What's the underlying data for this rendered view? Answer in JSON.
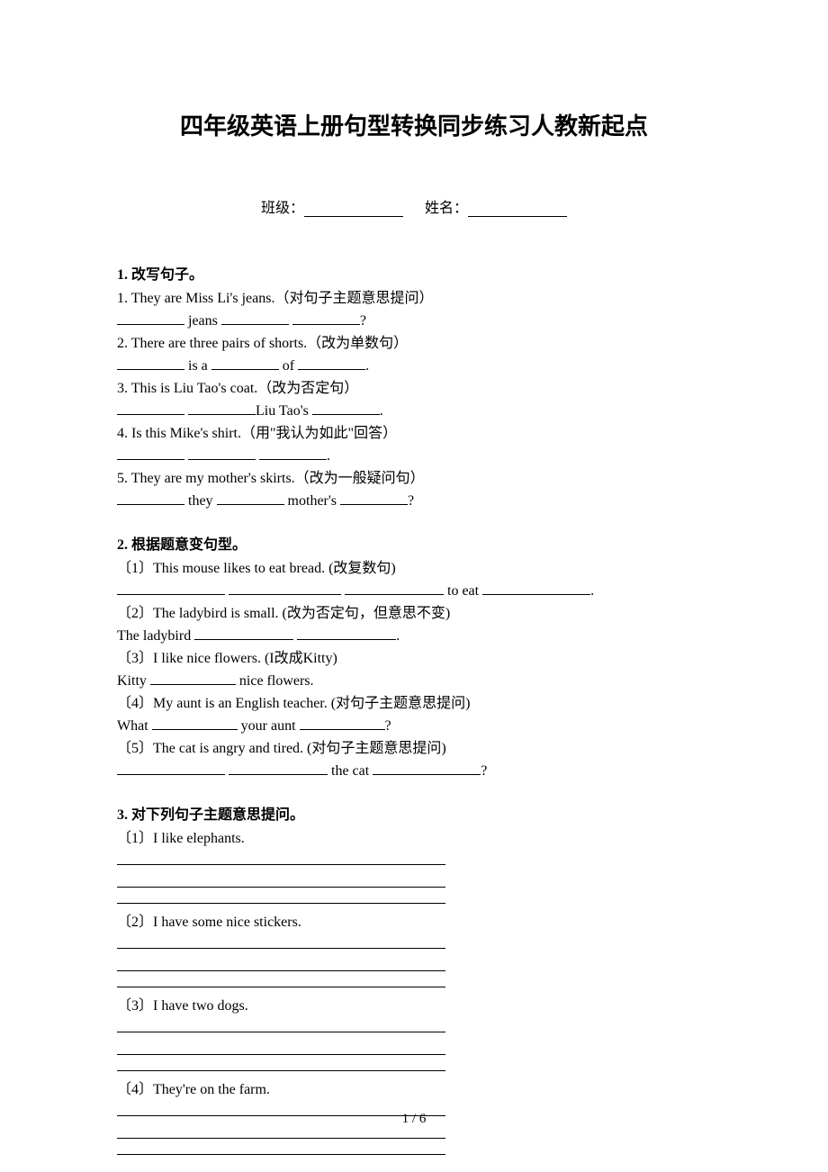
{
  "title": "四年级英语上册句型转换同步练习人教新起点",
  "info": {
    "class_label": "班级：",
    "name_label": "姓名："
  },
  "s1": {
    "title": "1.  改写句子。",
    "q1": "1. They are Miss Li's jeans.（对句子主题意思提问）",
    "q1b_mid": " jeans ",
    "q1b_end": "?",
    "q2": "2. There are three pairs of shorts.（改为单数句）",
    "q2b_mid1": " is a ",
    "q2b_mid2": " of ",
    "q2b_end": ".",
    "q3": "3. This is Liu Tao's coat.（改为否定句）",
    "q3b_mid": "Liu Tao's ",
    "q3b_end": ".",
    "q4": "4. Is this Mike's shirt.（用\"我认为如此\"回答）",
    "q4b_end": ".",
    "q5": "5. They are my mother's skirts.（改为一般疑问句）",
    "q5b_mid1": " they ",
    "q5b_mid2": " mother's ",
    "q5b_end": "?"
  },
  "s2": {
    "title": "2.  根据题意变句型。",
    "q1": "〔1〕This mouse likes to eat bread. (改复数句)",
    "q1b_mid": " to eat ",
    "q1b_end": ".",
    "q2": "〔2〕The ladybird is small. (改为否定句，但意思不变)",
    "q2a": "The ladybird ",
    "q2b_end": ".",
    "q3": "〔3〕I like nice flowers. (I改成Kitty)",
    "q3a": "Kitty ",
    "q3b_end": " nice flowers.",
    "q4": "〔4〕My aunt is an English teacher. (对句子主题意思提问)",
    "q4a": "What ",
    "q4b_mid": " your aunt ",
    "q4b_end": "?",
    "q5": "〔5〕The cat is angry and tired. (对句子主题意思提问)",
    "q5b_mid": " the cat ",
    "q5b_end": "?"
  },
  "s3": {
    "title": "3.  对下列句子主题意思提问。",
    "q1": "〔1〕I like elephants.",
    "q2": "〔2〕I have some nice stickers.",
    "q3": "〔3〕I have two dogs.",
    "q4": "〔4〕They're on the farm."
  },
  "footer": "1 / 6"
}
